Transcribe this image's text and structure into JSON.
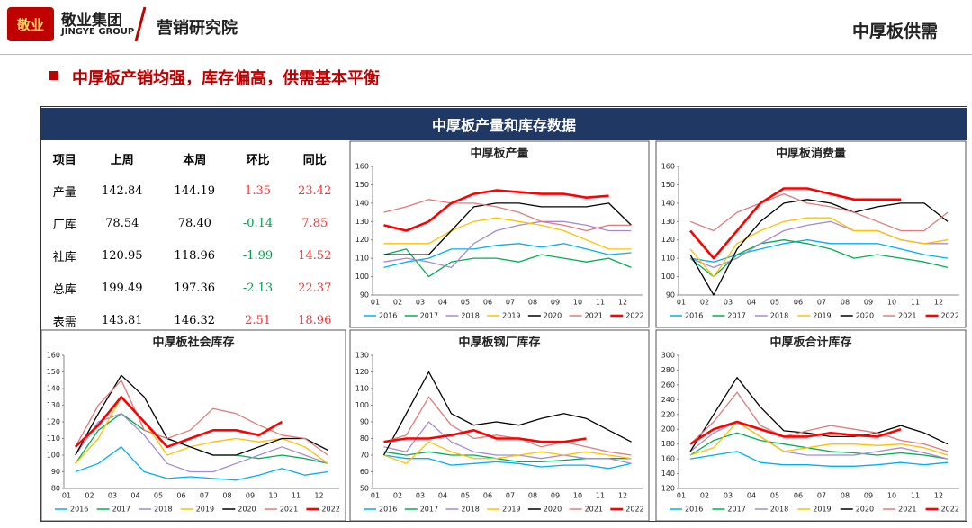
{
  "header": {
    "logo_text": "敬业集团",
    "logo_sub": "JINGYE GROUP",
    "logo_badge": "敬业",
    "division": "营销研究院",
    "page_title": "中厚板供需"
  },
  "bullet": "中厚板产销均强，库存偏高，供需基本平衡",
  "panel_title": "中厚板产量和库存数据",
  "table": {
    "header": [
      "项目",
      "上周",
      "本周",
      "环比",
      "同比"
    ],
    "rows": [
      [
        "产量",
        "142.84",
        "144.19",
        "1.35",
        "23.42"
      ],
      [
        "厂库",
        "78.54",
        "78.40",
        "-0.14",
        "7.85"
      ],
      [
        "社库",
        "120.95",
        "118.96",
        "-1.99",
        "14.52"
      ],
      [
        "总库",
        "199.49",
        "197.36",
        "-2.13",
        "22.37"
      ],
      [
        "表需",
        "143.81",
        "146.32",
        "2.51",
        "18.96"
      ]
    ]
  },
  "chart_data": [
    {
      "type": "line",
      "title": "中厚板产量",
      "categories": [
        "01",
        "02",
        "03",
        "04",
        "05",
        "06",
        "07",
        "08",
        "09",
        "10",
        "11",
        "12"
      ],
      "ylim": [
        90,
        160
      ],
      "yticks": [
        90,
        100,
        110,
        120,
        130,
        140,
        150,
        160
      ],
      "series": [
        {
          "name": "2016",
          "color": "#00b0f0",
          "values": [
            105,
            108,
            110,
            115,
            115,
            117,
            118,
            116,
            118,
            115,
            112,
            113
          ]
        },
        {
          "name": "2017",
          "color": "#00b050",
          "values": [
            112,
            115,
            100,
            108,
            110,
            110,
            108,
            112,
            110,
            108,
            110,
            105
          ]
        },
        {
          "name": "2018",
          "color": "#a68bd0",
          "values": [
            108,
            110,
            108,
            105,
            118,
            125,
            128,
            130,
            130,
            128,
            125,
            125
          ]
        },
        {
          "name": "2019",
          "color": "#ffc000",
          "values": [
            118,
            118,
            118,
            125,
            130,
            132,
            130,
            128,
            125,
            120,
            115,
            115
          ]
        },
        {
          "name": "2020",
          "color": "#000000",
          "values": [
            112,
            112,
            112,
            125,
            138,
            140,
            140,
            138,
            138,
            138,
            140,
            128
          ]
        },
        {
          "name": "2021",
          "color": "#e07b7b",
          "values": [
            135,
            138,
            142,
            140,
            140,
            138,
            135,
            130,
            128,
            125,
            128,
            128
          ]
        },
        {
          "name": "2022",
          "color": "#ff0000",
          "values": [
            128,
            125,
            130,
            140,
            145,
            147,
            146,
            145,
            145,
            143,
            144,
            null
          ]
        }
      ]
    },
    {
      "type": "line",
      "title": "中厚板消费量",
      "categories": [
        "01",
        "02",
        "03",
        "04",
        "05",
        "06",
        "07",
        "08",
        "09",
        "10",
        "11",
        "12"
      ],
      "ylim": [
        90,
        160
      ],
      "yticks": [
        90,
        100,
        110,
        120,
        130,
        140,
        150,
        160
      ],
      "series": [
        {
          "name": "2016",
          "color": "#00b0f0",
          "values": [
            110,
            108,
            112,
            115,
            118,
            120,
            118,
            118,
            118,
            115,
            112,
            110
          ]
        },
        {
          "name": "2017",
          "color": "#00b050",
          "values": [
            110,
            100,
            112,
            118,
            120,
            118,
            115,
            110,
            112,
            110,
            108,
            105
          ]
        },
        {
          "name": "2018",
          "color": "#a68bd0",
          "values": [
            110,
            105,
            110,
            118,
            125,
            128,
            130,
            125,
            125,
            120,
            118,
            118
          ]
        },
        {
          "name": "2019",
          "color": "#ffc000",
          "values": [
            115,
            100,
            118,
            125,
            130,
            132,
            132,
            125,
            125,
            120,
            118,
            120
          ]
        },
        {
          "name": "2020",
          "color": "#000000",
          "values": [
            112,
            90,
            115,
            130,
            140,
            142,
            140,
            135,
            138,
            140,
            140,
            130
          ]
        },
        {
          "name": "2021",
          "color": "#e07b7b",
          "values": [
            130,
            125,
            135,
            140,
            145,
            140,
            138,
            135,
            130,
            125,
            125,
            135
          ]
        },
        {
          "name": "2022",
          "color": "#ff0000",
          "values": [
            125,
            110,
            125,
            140,
            148,
            148,
            145,
            142,
            142,
            142,
            null,
            null
          ]
        }
      ]
    },
    {
      "type": "line",
      "title": "中厚板社会库存",
      "categories": [
        "01",
        "02",
        "03",
        "04",
        "05",
        "06",
        "07",
        "08",
        "09",
        "10",
        "11",
        "12"
      ],
      "ylim": [
        80,
        160
      ],
      "yticks": [
        80,
        90,
        100,
        110,
        120,
        130,
        140,
        150,
        160
      ],
      "series": [
        {
          "name": "2016",
          "color": "#00b0f0",
          "values": [
            90,
            95,
            105,
            90,
            86,
            87,
            86,
            85,
            88,
            92,
            88,
            90
          ]
        },
        {
          "name": "2017",
          "color": "#00b050",
          "values": [
            95,
            115,
            125,
            115,
            110,
            105,
            100,
            100,
            98,
            100,
            98,
            95
          ]
        },
        {
          "name": "2018",
          "color": "#a68bd0",
          "values": [
            100,
            120,
            125,
            112,
            95,
            90,
            90,
            95,
            100,
            105,
            100,
            95
          ]
        },
        {
          "name": "2019",
          "color": "#ffc000",
          "values": [
            95,
            110,
            135,
            120,
            100,
            105,
            108,
            110,
            108,
            110,
            105,
            95
          ]
        },
        {
          "name": "2020",
          "color": "#000000",
          "values": [
            100,
            125,
            148,
            135,
            110,
            105,
            100,
            100,
            105,
            110,
            110,
            103
          ]
        },
        {
          "name": "2021",
          "color": "#e07b7b",
          "values": [
            105,
            130,
            145,
            115,
            110,
            115,
            128,
            125,
            118,
            112,
            110,
            100
          ]
        },
        {
          "name": "2022",
          "color": "#ff0000",
          "values": [
            105,
            118,
            135,
            120,
            105,
            110,
            115,
            115,
            112,
            120,
            null,
            null
          ]
        }
      ]
    },
    {
      "type": "line",
      "title": "中厚板钢厂库存",
      "categories": [
        "01",
        "02",
        "03",
        "04",
        "05",
        "06",
        "07",
        "08",
        "09",
        "10",
        "11",
        "12"
      ],
      "ylim": [
        50,
        130
      ],
      "yticks": [
        50,
        60,
        70,
        80,
        90,
        100,
        110,
        120,
        130
      ],
      "series": [
        {
          "name": "2016",
          "color": "#00b0f0",
          "values": [
            70,
            68,
            68,
            64,
            65,
            66,
            65,
            63,
            64,
            64,
            62,
            65
          ]
        },
        {
          "name": "2017",
          "color": "#00b050",
          "values": [
            72,
            70,
            72,
            70,
            70,
            68,
            66,
            66,
            67,
            68,
            68,
            68
          ]
        },
        {
          "name": "2018",
          "color": "#a68bd0",
          "values": [
            75,
            72,
            90,
            78,
            72,
            70,
            70,
            68,
            70,
            68,
            68,
            65
          ]
        },
        {
          "name": "2019",
          "color": "#ffc000",
          "values": [
            70,
            65,
            78,
            72,
            68,
            68,
            70,
            72,
            70,
            72,
            70,
            68
          ]
        },
        {
          "name": "2020",
          "color": "#000000",
          "values": [
            70,
            95,
            120,
            95,
            88,
            90,
            88,
            92,
            95,
            92,
            85,
            78
          ]
        },
        {
          "name": "2021",
          "color": "#e07b7b",
          "values": [
            78,
            82,
            105,
            88,
            80,
            82,
            80,
            75,
            78,
            75,
            72,
            70
          ]
        },
        {
          "name": "2022",
          "color": "#ff0000",
          "values": [
            78,
            80,
            80,
            82,
            85,
            80,
            80,
            78,
            78,
            80,
            null,
            null
          ]
        }
      ]
    },
    {
      "type": "line",
      "title": "中厚板合计库存",
      "categories": [
        "01",
        "02",
        "03",
        "04",
        "05",
        "06",
        "07",
        "08",
        "09",
        "10",
        "11",
        "12"
      ],
      "ylim": [
        120,
        300
      ],
      "yticks": [
        120,
        140,
        160,
        180,
        200,
        220,
        240,
        260,
        280,
        300
      ],
      "series": [
        {
          "name": "2016",
          "color": "#00b0f0",
          "values": [
            160,
            165,
            170,
            155,
            152,
            152,
            150,
            150,
            152,
            155,
            152,
            155
          ]
        },
        {
          "name": "2017",
          "color": "#00b050",
          "values": [
            165,
            185,
            195,
            185,
            180,
            175,
            170,
            168,
            165,
            168,
            165,
            160
          ]
        },
        {
          "name": "2018",
          "color": "#a68bd0",
          "values": [
            170,
            195,
            210,
            190,
            170,
            165,
            165,
            165,
            170,
            175,
            168,
            160
          ]
        },
        {
          "name": "2019",
          "color": "#ffc000",
          "values": [
            165,
            175,
            210,
            190,
            170,
            175,
            180,
            180,
            178,
            180,
            175,
            165
          ]
        },
        {
          "name": "2020",
          "color": "#000000",
          "values": [
            170,
            220,
            270,
            230,
            198,
            195,
            190,
            190,
            195,
            205,
            195,
            180
          ]
        },
        {
          "name": "2021",
          "color": "#e07b7b",
          "values": [
            180,
            210,
            250,
            205,
            190,
            198,
            205,
            200,
            195,
            185,
            180,
            170
          ]
        },
        {
          "name": "2022",
          "color": "#ff0000",
          "values": [
            180,
            200,
            210,
            200,
            190,
            190,
            195,
            192,
            190,
            200,
            null,
            null
          ]
        }
      ]
    }
  ]
}
